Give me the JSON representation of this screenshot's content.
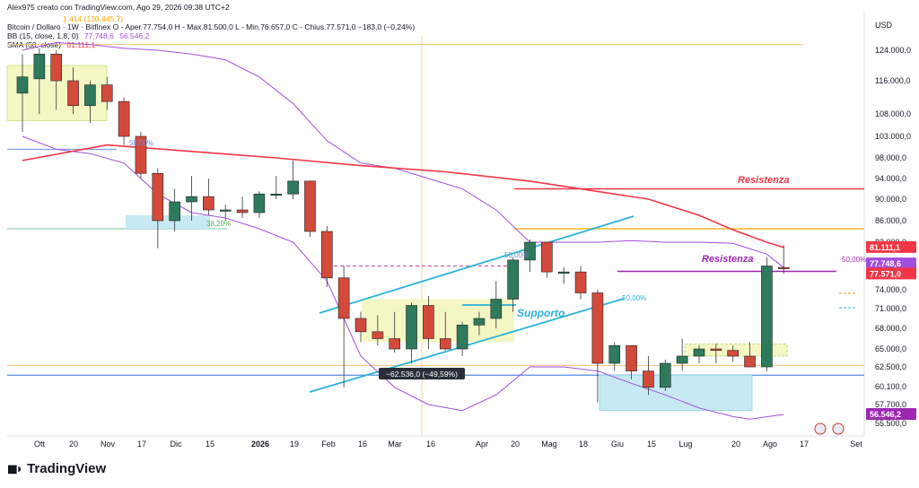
{
  "header": {
    "author_line": "Alex975 creato con TradingView.com, Ago 29, 2026 09:38 UTC+2",
    "symbol_line": "Bitcoin / Dollaro · 1W · Bitfinex  O - Aper.77.754,0  H - Max.81.500,0  L - Min.76.657,0  C - Chius.77.571,0  −183,0 (−0,24%)",
    "bb_line_label": "BB (15, close, 1.8, 0)",
    "bb_line_values": [
      "77.748,6",
      "56.546,2"
    ],
    "sma_line_label": "SMA (50, close)",
    "sma_line_value": "81.111,1",
    "top_note": "1.414 (130.445,7)"
  },
  "logo": {
    "text": "TradingView"
  },
  "chart_data": {
    "type": "candlestick",
    "currency": "USD",
    "y_ticks": [
      "124.000,0",
      "116.000,0",
      "108.000,0",
      "103.000,0",
      "98.000,0",
      "94.000,0",
      "90.000,0",
      "86.000,0",
      "82.000,0",
      "74.000,0",
      "71.000,0",
      "68.000,0",
      "65.000,0",
      "62.500,0",
      "60.100,0",
      "57.700,0",
      "55.500,0"
    ],
    "y_tick_values": [
      124000,
      116000,
      108000,
      103000,
      98000,
      94000,
      90000,
      86000,
      82000,
      74000,
      71000,
      68000,
      65000,
      62500,
      60100,
      57700,
      55500
    ],
    "x_ticks": [
      "Ott",
      "20",
      "Nov",
      "17",
      "Dic",
      "15",
      "2026",
      "19",
      "Feb",
      "16",
      "Mar",
      "16",
      "Apr",
      "20",
      "Mag",
      "18",
      "Giu",
      "15",
      "Lug",
      "20",
      "Ago",
      "17",
      "Set"
    ],
    "x_tick_bold": [
      "2026"
    ],
    "candles": [
      {
        "o": 113000,
        "h": 123000,
        "l": 104000,
        "c": 117000
      },
      {
        "o": 116500,
        "h": 124500,
        "l": 108000,
        "c": 123000
      },
      {
        "o": 123000,
        "h": 124000,
        "l": 109000,
        "c": 116000
      },
      {
        "o": 116000,
        "h": 119500,
        "l": 108000,
        "c": 110000
      },
      {
        "o": 110000,
        "h": 116000,
        "l": 106000,
        "c": 115000
      },
      {
        "o": 115000,
        "h": 117000,
        "l": 109000,
        "c": 111000
      },
      {
        "o": 111000,
        "h": 112000,
        "l": 101000,
        "c": 103000
      },
      {
        "o": 103000,
        "h": 104000,
        "l": 94000,
        "c": 95000
      },
      {
        "o": 95000,
        "h": 96000,
        "l": 81000,
        "c": 86000
      },
      {
        "o": 86000,
        "h": 92000,
        "l": 84000,
        "c": 89500
      },
      {
        "o": 89500,
        "h": 94500,
        "l": 86000,
        "c": 90500
      },
      {
        "o": 90500,
        "h": 94000,
        "l": 87000,
        "c": 88000
      },
      {
        "o": 88000,
        "h": 89000,
        "l": 86000,
        "c": 88000
      },
      {
        "o": 88000,
        "h": 90500,
        "l": 86500,
        "c": 87500
      },
      {
        "o": 87500,
        "h": 91500,
        "l": 86500,
        "c": 91000
      },
      {
        "o": 91000,
        "h": 94500,
        "l": 90000,
        "c": 91000
      },
      {
        "o": 91000,
        "h": 97500,
        "l": 90000,
        "c": 93500
      },
      {
        "o": 93500,
        "h": 93500,
        "l": 83000,
        "c": 84000
      },
      {
        "o": 84000,
        "h": 85000,
        "l": 74500,
        "c": 76000
      },
      {
        "o": 76000,
        "h": 78000,
        "l": 60000,
        "c": 69500
      },
      {
        "o": 69500,
        "h": 70500,
        "l": 66000,
        "c": 67500
      },
      {
        "o": 67500,
        "h": 70000,
        "l": 65500,
        "c": 66500
      },
      {
        "o": 66500,
        "h": 70500,
        "l": 64500,
        "c": 65000
      },
      {
        "o": 65000,
        "h": 72000,
        "l": 63000,
        "c": 71500
      },
      {
        "o": 71500,
        "h": 73000,
        "l": 65000,
        "c": 66500
      },
      {
        "o": 66500,
        "h": 70500,
        "l": 64800,
        "c": 65000
      },
      {
        "o": 65000,
        "h": 69000,
        "l": 64000,
        "c": 68500
      },
      {
        "o": 68500,
        "h": 70500,
        "l": 67000,
        "c": 69500
      },
      {
        "o": 69500,
        "h": 75500,
        "l": 68000,
        "c": 72500
      },
      {
        "o": 72500,
        "h": 79500,
        "l": 70500,
        "c": 79000
      },
      {
        "o": 79000,
        "h": 82500,
        "l": 77000,
        "c": 82000
      },
      {
        "o": 82000,
        "h": 82000,
        "l": 76000,
        "c": 77000
      },
      {
        "o": 77000,
        "h": 77800,
        "l": 75000,
        "c": 77000
      },
      {
        "o": 77000,
        "h": 78000,
        "l": 72500,
        "c": 73500
      },
      {
        "o": 73500,
        "h": 74000,
        "l": 58000,
        "c": 63000
      },
      {
        "o": 63000,
        "h": 66000,
        "l": 62000,
        "c": 65500
      },
      {
        "o": 65500,
        "h": 65500,
        "l": 61000,
        "c": 62000
      },
      {
        "o": 62000,
        "h": 64000,
        "l": 59000,
        "c": 60000
      },
      {
        "o": 60000,
        "h": 63500,
        "l": 59500,
        "c": 63000
      },
      {
        "o": 63000,
        "h": 66500,
        "l": 62000,
        "c": 64000
      },
      {
        "o": 64000,
        "h": 65500,
        "l": 63000,
        "c": 65000
      },
      {
        "o": 65000,
        "h": 65800,
        "l": 63000,
        "c": 64800
      },
      {
        "o": 64800,
        "h": 65500,
        "l": 63200,
        "c": 64000
      },
      {
        "o": 64000,
        "h": 66000,
        "l": 62500,
        "c": 62500
      },
      {
        "o": 62500,
        "h": 79500,
        "l": 62000,
        "c": 78000
      },
      {
        "o": 77754,
        "h": 81500,
        "l": 76657,
        "c": 77571
      }
    ],
    "sma50": [
      [
        0,
        97500
      ],
      [
        5,
        101000
      ],
      [
        10,
        99500
      ],
      [
        15,
        98000
      ],
      [
        20,
        96500
      ],
      [
        25,
        95300
      ],
      [
        30,
        93500
      ],
      [
        34,
        91500
      ],
      [
        37,
        90000
      ],
      [
        40,
        87000
      ],
      [
        42,
        84300
      ],
      [
        44,
        82000
      ],
      [
        45,
        81111
      ]
    ],
    "bb_upper": [
      [
        0,
        124000
      ],
      [
        2,
        126000
      ],
      [
        4,
        125500
      ],
      [
        6,
        124500
      ],
      [
        8,
        124000
      ],
      [
        10,
        123000
      ],
      [
        12,
        121500
      ],
      [
        14,
        117000
      ],
      [
        16,
        110500
      ],
      [
        18,
        102000
      ],
      [
        20,
        97000
      ],
      [
        22,
        96000
      ],
      [
        24,
        94000
      ],
      [
        26,
        92000
      ],
      [
        28,
        88000
      ],
      [
        30,
        82000
      ],
      [
        32,
        82000
      ],
      [
        34,
        82000
      ],
      [
        36,
        82300
      ],
      [
        38,
        82000
      ],
      [
        40,
        82000
      ],
      [
        42,
        81800
      ],
      [
        44,
        80000
      ],
      [
        45,
        77748
      ]
    ],
    "bb_lower": [
      [
        0,
        103000
      ],
      [
        2,
        100000
      ],
      [
        4,
        99000
      ],
      [
        6,
        97000
      ],
      [
        8,
        91000
      ],
      [
        10,
        87500
      ],
      [
        12,
        86500
      ],
      [
        14,
        84500
      ],
      [
        16,
        82000
      ],
      [
        18,
        75500
      ],
      [
        20,
        64000
      ],
      [
        22,
        60000
      ],
      [
        24,
        57700
      ],
      [
        26,
        57000
      ],
      [
        28,
        59000
      ],
      [
        30,
        62500
      ],
      [
        32,
        62500
      ],
      [
        34,
        62000
      ],
      [
        36,
        60500
      ],
      [
        38,
        59000
      ],
      [
        40,
        57300
      ],
      [
        42,
        56300
      ],
      [
        43,
        56000
      ],
      [
        45,
        56546
      ]
    ],
    "price_labels": [
      {
        "text": "81.111,1",
        "value": 81111,
        "color": "#f23645"
      },
      {
        "text": "77.748,6",
        "value": 77749,
        "color": "#a34ddd"
      },
      {
        "text": "77.571,0",
        "value": 77571,
        "color": "#f23645"
      },
      {
        "text": "56.546,2",
        "value": 56546,
        "color": "#9c27b0"
      }
    ],
    "annotations": {
      "resistenza_1": {
        "text": "Resistenza",
        "color": "#f23645"
      },
      "resistenza_2": {
        "text": "Resistenza",
        "color": "#9c27b0"
      },
      "supporto": {
        "text": "Supporto",
        "color": "#2bb3d9"
      },
      "measure": "−62.536,0 (−49,59%)",
      "fib_50_a": "50,00%",
      "fib_50_b": "50,00%",
      "fib_50_c": "50,00%",
      "fib_50_d": "50,00%",
      "fib_382": "38,20%"
    },
    "levels": {
      "resistenza_red": 92000,
      "orange_top": 84500,
      "orange_low": 62700,
      "resistenza_purple": 77100,
      "blue_support": 61500,
      "top_orange": 125500
    },
    "colors": {
      "up": "#2e7a5d",
      "down": "#d44a3a",
      "sma": "#f23645",
      "bb": "#a34ddd",
      "channel": "#2bb3d9",
      "zone": "#f4f7c4",
      "zone_blue": "#c7e9f3"
    }
  }
}
